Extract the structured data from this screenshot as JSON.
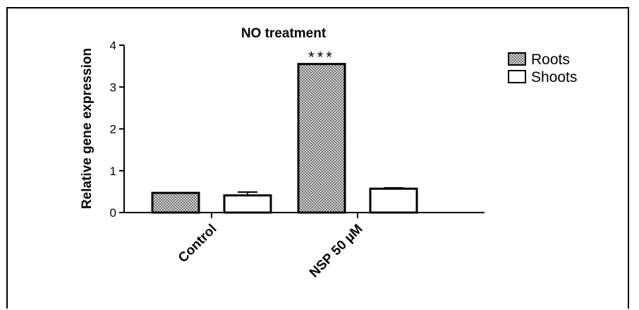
{
  "chart_data": {
    "type": "bar",
    "title": "NO treatment",
    "xlabel": "",
    "ylabel": "Relative gene expression",
    "categories": [
      "Control",
      "NSP 50 µM"
    ],
    "ylim": [
      0,
      4
    ],
    "yticks": [
      "0",
      "1",
      "2",
      "3",
      "4"
    ],
    "grid": false,
    "legend_position": "top-right",
    "series": [
      {
        "name": "Roots",
        "values": [
          0.47,
          3.55
        ],
        "errors": [
          0.0,
          0.0
        ],
        "fill": "hatched-gray"
      },
      {
        "name": "Shoots",
        "values": [
          0.41,
          0.57
        ],
        "errors": [
          0.08,
          0.02
        ],
        "fill": "white"
      }
    ],
    "annotations": [
      {
        "category": "NSP 50 µM",
        "series": "Roots",
        "text": "***"
      }
    ]
  }
}
